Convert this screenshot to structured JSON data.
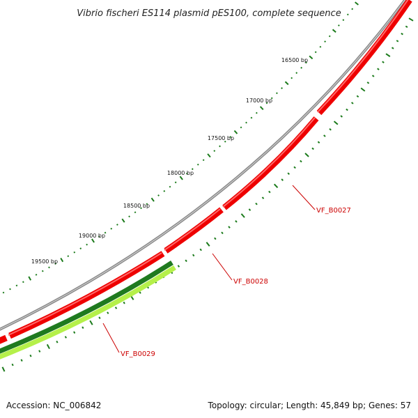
{
  "title": "Vibrio fischeri ES114 plasmid pES100, complete sequence",
  "accession": "Accession: NC_006842",
  "topology": "Topology: circular; Length: 45,849 bp; Genes: 57",
  "colors": {
    "backbone": "#8a8a8a",
    "cds": "#ee0000",
    "gene_dark": "#1f7a1f",
    "gene_light": "#b5f04a",
    "ticks": "#1a7a1a",
    "label": "#cc0000"
  },
  "ticks": [
    {
      "label": "16500 bp"
    },
    {
      "label": "17000 bp"
    },
    {
      "label": "17500 bp"
    },
    {
      "label": "18000 bp"
    },
    {
      "label": "18500 bp"
    },
    {
      "label": "19000 bp"
    },
    {
      "label": "19500 bp"
    }
  ],
  "genes": [
    {
      "label": "VF_B0027"
    },
    {
      "label": "VF_B0028"
    },
    {
      "label": "VF_B0029"
    }
  ]
}
